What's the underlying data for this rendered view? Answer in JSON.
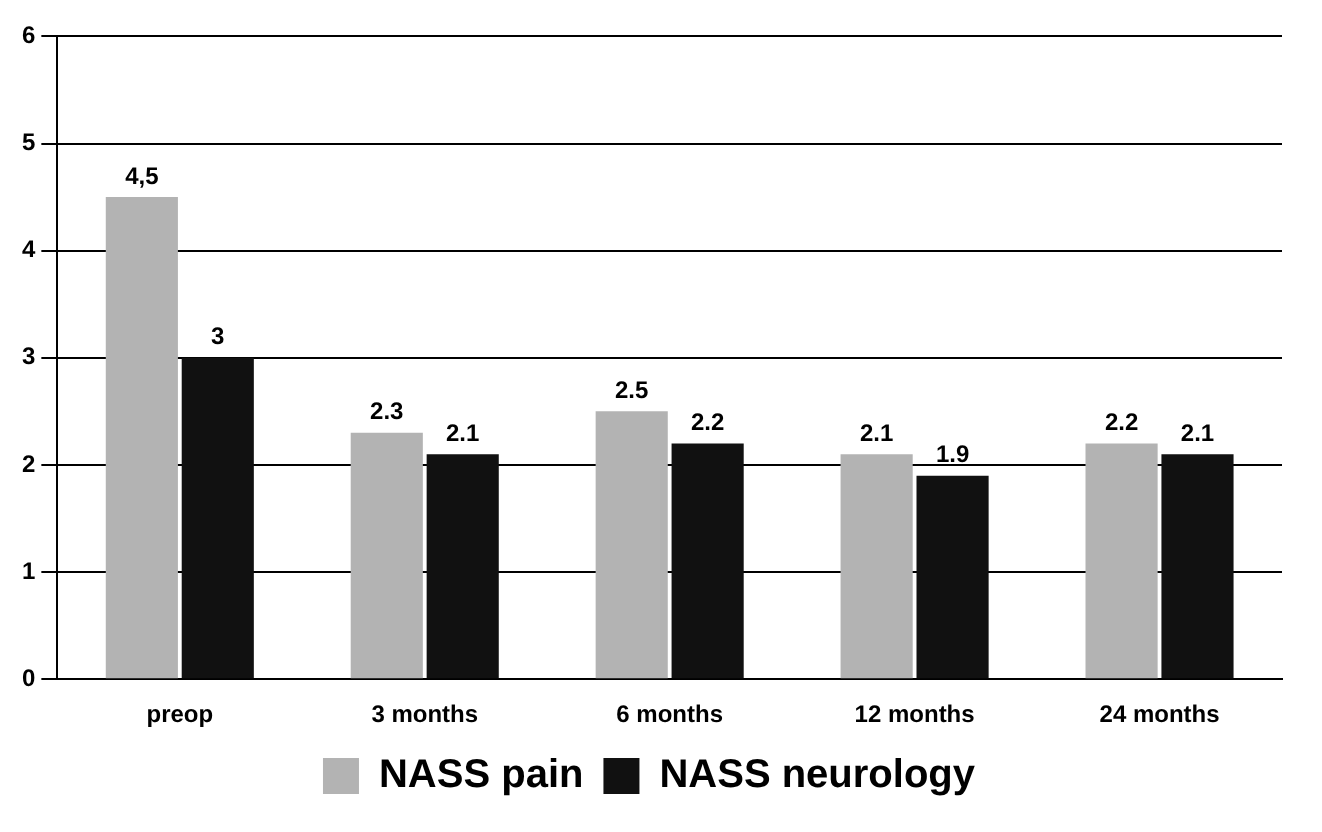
{
  "chart_data": {
    "type": "bar",
    "categories": [
      "preop",
      "3 months",
      "6 months",
      "12 months",
      "24 months"
    ],
    "series": [
      {
        "name": "NASS pain",
        "color": "#b3b3b3",
        "values": [
          4.5,
          2.3,
          2.5,
          2.1,
          2.2
        ],
        "value_labels": [
          "4,5",
          "2.3",
          "2.5",
          "2.1",
          "2.2"
        ]
      },
      {
        "name": "NASS neurology",
        "color": "#111111",
        "values": [
          3,
          2.1,
          2.2,
          1.9,
          2.1
        ],
        "value_labels": [
          "3",
          "2.1",
          "2.2",
          "1.9",
          "2.1"
        ]
      }
    ],
    "ylim": [
      0,
      6
    ],
    "yticks": [
      0,
      1,
      2,
      3,
      4,
      5,
      6
    ],
    "grid": "y",
    "legend": "bottom"
  }
}
